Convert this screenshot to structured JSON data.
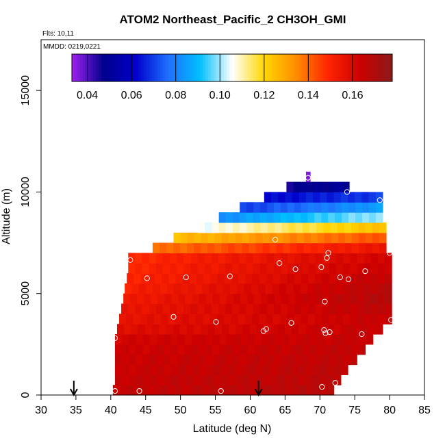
{
  "chart_data": {
    "type": "heatmap",
    "title": "ATOM2 Northeast_Pacific_2 CH3OH_GMI",
    "flights_label": "Flts: 10,11",
    "mmdd_label": "MMDD: 0219,0221",
    "xlabel": "Latitude (deg N)",
    "ylabel": "Altitude (m)",
    "xlim": [
      30,
      85
    ],
    "ylim": [
      0,
      17500
    ],
    "x_ticks": [
      "30",
      "35",
      "40",
      "45",
      "50",
      "55",
      "60",
      "65",
      "70",
      "75",
      "80",
      "85"
    ],
    "y_ticks": [
      "0",
      "5000",
      "10000",
      "15000"
    ],
    "colorbar": {
      "range": [
        0.033,
        0.178
      ],
      "tick_values": [
        0.04,
        0.06,
        0.08,
        0.1,
        0.12,
        0.14,
        0.16
      ],
      "tick_labels": [
        "0.04",
        "0.06",
        "0.08",
        "0.10",
        "0.12",
        "0.14",
        "0.16"
      ],
      "colors": [
        "#a020f0",
        "#00008b",
        "#0000cd",
        "#1e6fff",
        "#00bfff",
        "#ffffff",
        "#ffd700",
        "#ff8c00",
        "#ff2400",
        "#cc0000",
        "#8b1a1a"
      ]
    },
    "layers": [
      {
        "z0": 0,
        "z1": 500,
        "lat0": 40.3,
        "lat1": 72,
        "v0": 0.165,
        "v1": 0.168
      },
      {
        "z0": 500,
        "z1": 1000,
        "lat0": 40.6,
        "lat1": 73,
        "v0": 0.165,
        "v1": 0.167
      },
      {
        "z0": 1000,
        "z1": 1500,
        "lat0": 40.6,
        "lat1": 74,
        "v0": 0.164,
        "v1": 0.167
      },
      {
        "z0": 1500,
        "z1": 2000,
        "lat0": 40.6,
        "lat1": 75.3,
        "v0": 0.164,
        "v1": 0.166
      },
      {
        "z0": 2000,
        "z1": 2500,
        "lat0": 40.6,
        "lat1": 76.5,
        "v0": 0.163,
        "v1": 0.166
      },
      {
        "z0": 2500,
        "z1": 3000,
        "lat0": 40.6,
        "lat1": 77.6,
        "v0": 0.162,
        "v1": 0.165
      },
      {
        "z0": 3000,
        "z1": 3500,
        "lat0": 40.9,
        "lat1": 79,
        "v0": 0.158,
        "v1": 0.165
      },
      {
        "z0": 3500,
        "z1": 4000,
        "lat0": 41.2,
        "lat1": 80.3,
        "v0": 0.156,
        "v1": 0.165
      },
      {
        "z0": 4000,
        "z1": 4500,
        "lat0": 41.5,
        "lat1": 80.3,
        "v0": 0.155,
        "v1": 0.167
      },
      {
        "z0": 4500,
        "z1": 5000,
        "lat0": 41.8,
        "lat1": 80.3,
        "v0": 0.153,
        "v1": 0.169
      },
      {
        "z0": 5000,
        "z1": 5500,
        "lat0": 42,
        "lat1": 80.3,
        "v0": 0.151,
        "v1": 0.168
      },
      {
        "z0": 5500,
        "z1": 6000,
        "lat0": 42.3,
        "lat1": 80.3,
        "v0": 0.15,
        "v1": 0.166
      },
      {
        "z0": 6000,
        "z1": 6500,
        "lat0": 42.5,
        "lat1": 80.3,
        "v0": 0.149,
        "v1": 0.164
      },
      {
        "z0": 6500,
        "z1": 7000,
        "lat0": 42.5,
        "lat1": 80.3,
        "v0": 0.148,
        "v1": 0.162
      },
      {
        "z0": 7000,
        "z1": 7500,
        "lat0": 46,
        "lat1": 79.5,
        "v0": 0.138,
        "v1": 0.155
      },
      {
        "z0": 7500,
        "z1": 8000,
        "lat0": 49,
        "lat1": 79.5,
        "v0": 0.125,
        "v1": 0.143
      },
      {
        "z0": 8000,
        "z1": 8500,
        "lat0": 52.5,
        "lat1": 79.5,
        "v0": 0.105,
        "v1": 0.125
      },
      {
        "z0": 8500,
        "z1": 9000,
        "lat0": 55.5,
        "lat1": 79,
        "v0": 0.082,
        "v1": 0.1
      },
      {
        "z0": 9000,
        "z1": 9500,
        "lat0": 58.5,
        "lat1": 79,
        "v0": 0.07,
        "v1": 0.085
      },
      {
        "z0": 9500,
        "z1": 10000,
        "lat0": 62,
        "lat1": 79,
        "v0": 0.062,
        "v1": 0.07
      },
      {
        "z0": 10000,
        "z1": 10500,
        "lat0": 65.2,
        "lat1": 74.2,
        "v0": 0.047,
        "v1": 0.05
      },
      {
        "z0": 10500,
        "z1": 11000,
        "lat0": 68,
        "lat1": 68.6,
        "v0": 0.035,
        "v1": 0.035
      }
    ],
    "flight_points": [
      [
        40.6,
        200
      ],
      [
        44.1,
        200
      ],
      [
        55.8,
        200
      ],
      [
        70.3,
        400
      ],
      [
        72.2,
        600
      ],
      [
        40.6,
        2800
      ],
      [
        49,
        3850
      ],
      [
        55.1,
        3600
      ],
      [
        61.9,
        3150
      ],
      [
        62.3,
        3250
      ],
      [
        65.9,
        3550
      ],
      [
        70.6,
        3200
      ],
      [
        70.8,
        3050
      ],
      [
        71.4,
        3100
      ],
      [
        76,
        3000
      ],
      [
        80.2,
        3700
      ],
      [
        45.2,
        5750
      ],
      [
        50.8,
        5800
      ],
      [
        57.1,
        5850
      ],
      [
        70.7,
        4600
      ],
      [
        72.9,
        5800
      ],
      [
        74.1,
        5700
      ],
      [
        76.5,
        6100
      ],
      [
        64.2,
        6500
      ],
      [
        66.5,
        6200
      ],
      [
        70.2,
        6300
      ],
      [
        42.8,
        6650
      ],
      [
        71,
        6750
      ],
      [
        71.2,
        7000
      ],
      [
        80,
        7000
      ],
      [
        63.6,
        7650
      ],
      [
        73.9,
        10000
      ],
      [
        78.6,
        9600
      ],
      [
        68.3,
        10700
      ]
    ],
    "arrows": [
      34.7,
      61.2
    ]
  }
}
